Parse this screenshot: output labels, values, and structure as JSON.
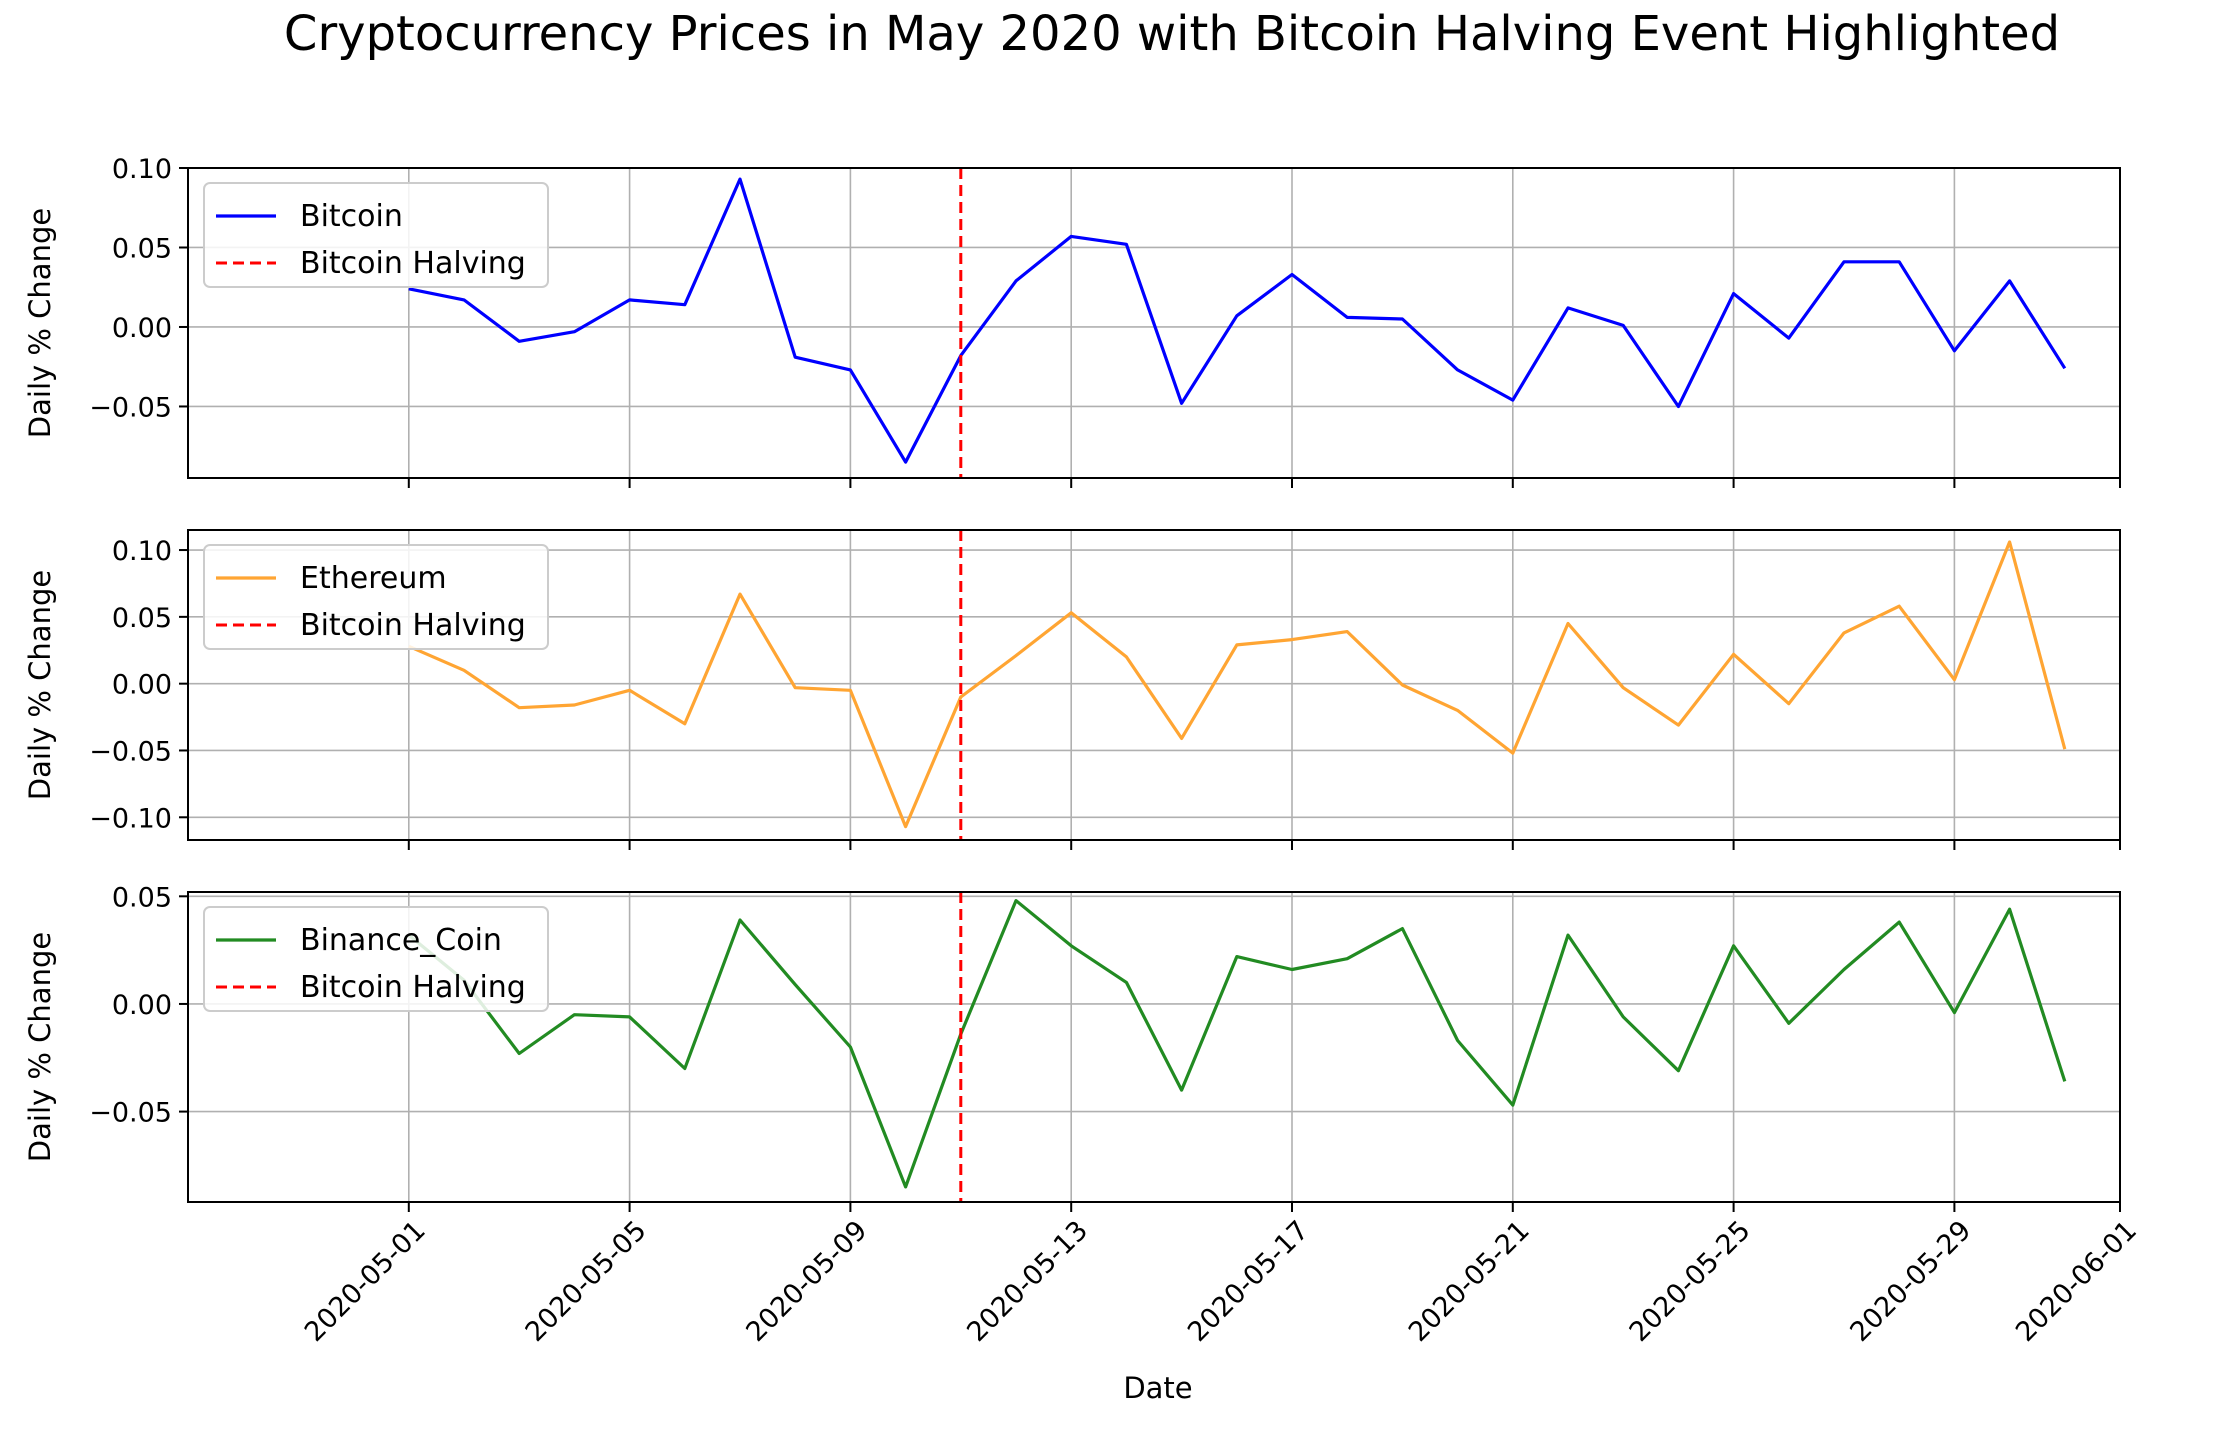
{
  "chart_data": {
    "type": "line",
    "title": "Cryptocurrency Prices in May 2020 with Bitcoin Halving Event Highlighted",
    "xlabel": "Date",
    "x_tick_labels": [
      "2020-05-01",
      "2020-05-05",
      "2020-05-09",
      "2020-05-13",
      "2020-05-17",
      "2020-05-21",
      "2020-05-25",
      "2020-05-29",
      "2020-06-01"
    ],
    "x_tick_dates": [
      "2020-05-01",
      "2020-05-05",
      "2020-05-09",
      "2020-05-13",
      "2020-05-17",
      "2020-05-21",
      "2020-05-25",
      "2020-05-29",
      "2020-06-01"
    ],
    "xlim": [
      "2020-04-27",
      "2020-06-01"
    ],
    "x": [
      "2020-05-01",
      "2020-05-02",
      "2020-05-03",
      "2020-05-04",
      "2020-05-05",
      "2020-05-06",
      "2020-05-07",
      "2020-05-08",
      "2020-05-09",
      "2020-05-10",
      "2020-05-11",
      "2020-05-12",
      "2020-05-13",
      "2020-05-14",
      "2020-05-15",
      "2020-05-16",
      "2020-05-17",
      "2020-05-18",
      "2020-05-19",
      "2020-05-20",
      "2020-05-21",
      "2020-05-22",
      "2020-05-23",
      "2020-05-24",
      "2020-05-25",
      "2020-05-26",
      "2020-05-27",
      "2020-05-28",
      "2020-05-29",
      "2020-05-30",
      "2020-05-31"
    ],
    "halving": {
      "date": "2020-05-11",
      "label": "Bitcoin Halving",
      "color": "#ff0000"
    },
    "grid": true,
    "legend_position": "top-left",
    "panels": [
      {
        "ylabel": "Daily % Change",
        "ylim": [
          -0.095,
          0.1
        ],
        "yticks": [
          0.1,
          0.05,
          0.0,
          -0.05
        ],
        "ytick_labels": [
          "0.10",
          "0.05",
          "0.00",
          "−0.05"
        ],
        "series": {
          "name": "Bitcoin",
          "color": "#0000ff",
          "values": [
            0.024,
            0.017,
            -0.009,
            -0.003,
            0.017,
            0.014,
            0.093,
            -0.019,
            -0.027,
            -0.085,
            -0.018,
            0.029,
            0.057,
            0.052,
            -0.048,
            0.007,
            0.033,
            0.006,
            0.005,
            -0.027,
            -0.046,
            0.012,
            0.001,
            -0.05,
            0.021,
            -0.007,
            0.041,
            0.041,
            -0.015,
            0.029,
            -0.026
          ]
        }
      },
      {
        "ylabel": "Daily % Change",
        "ylim": [
          -0.117,
          0.115
        ],
        "yticks": [
          0.1,
          0.05,
          0.0,
          -0.05,
          -0.1
        ],
        "ytick_labels": [
          "0.10",
          "0.05",
          "0.00",
          "−0.05",
          "−0.10"
        ],
        "series": {
          "name": "Ethereum",
          "color": "#ffa533",
          "values": [
            0.028,
            0.01,
            -0.018,
            -0.016,
            -0.005,
            -0.03,
            0.067,
            -0.003,
            -0.005,
            -0.107,
            -0.01,
            0.021,
            0.053,
            0.02,
            -0.041,
            0.029,
            0.033,
            0.039,
            -0.001,
            -0.02,
            -0.052,
            0.045,
            -0.003,
            -0.031,
            0.022,
            -0.015,
            0.038,
            0.058,
            0.003,
            0.106,
            -0.049
          ]
        }
      },
      {
        "ylabel": "Daily % Change",
        "ylim": [
          -0.092,
          0.052
        ],
        "yticks": [
          0.05,
          0.0,
          -0.05
        ],
        "ytick_labels": [
          "0.05",
          "0.00",
          "−0.05"
        ],
        "series": {
          "name": "Binance_Coin",
          "color": "#228b22",
          "values": [
            0.032,
            0.011,
            -0.023,
            -0.005,
            -0.006,
            -0.03,
            0.039,
            0.009,
            -0.02,
            -0.085,
            -0.014,
            0.048,
            0.027,
            0.01,
            -0.04,
            0.022,
            0.016,
            0.021,
            0.035,
            -0.017,
            -0.047,
            0.032,
            -0.006,
            -0.031,
            0.027,
            -0.009,
            0.016,
            0.038,
            -0.004,
            0.044,
            -0.036
          ]
        }
      }
    ]
  }
}
